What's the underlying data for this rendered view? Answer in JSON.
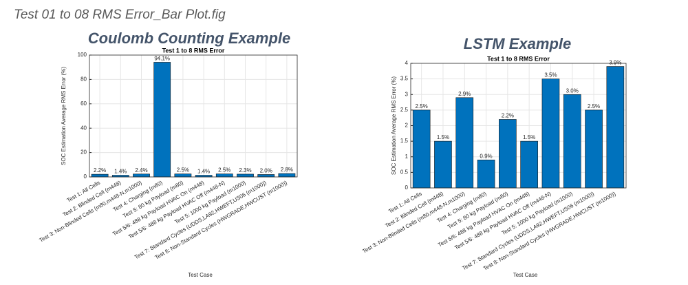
{
  "page_title": "Test 01 to 08 RMS Error_Bar Plot.fig",
  "chart_data": [
    {
      "type": "bar",
      "heading": "Coulomb Counting Example",
      "title": "Test 1 to 8 RMS Error",
      "x_label": "Test Case",
      "y_label": "SOC Estimation Average RMS Error (%)",
      "categories": [
        "Test 1: All Cells",
        "Test 2: Blinded Cell (m448)",
        "Test 3: Non-Blinded Cells (m80,m448-N,m1000)",
        "Test 4: Charging (m80)",
        "Test 5: 80 kg Payload (m80)",
        "Test 5/6: 488 kg Payload HVAC On (m448)",
        "Test 5/6: 488 kg Payload HVAC Off (m448-N)",
        "Test 5: 1000 kg Payload (m1000)",
        "Test 7: Standard Cycles (UDDS,LA92,HWEFT,US06 (m1000))",
        "Test 8: Non-Standard Cycles (HWGRADE,HWCUST (m1000))"
      ],
      "values": [
        2.2,
        1.4,
        2.4,
        94.1,
        2.5,
        1.4,
        2.5,
        2.3,
        2.0,
        2.8
      ],
      "value_labels": [
        "2.2%",
        "1.4%",
        "2.4%",
        "94.1%",
        "2.5%",
        "1.4%",
        "2.5%",
        "2.3%",
        "2.0%",
        "2.8%"
      ],
      "color": "#0072bd",
      "ylim": [
        0,
        100
      ],
      "yticks": [
        0,
        20,
        40,
        60,
        80,
        100
      ],
      "grid": true
    },
    {
      "type": "bar",
      "heading": "LSTM Example",
      "title": "Test 1 to 8 RMS Error",
      "x_label": "Test Case",
      "y_label": "SOC Estimation Average RMS Error (%)",
      "categories": [
        "Test 1: All Cells",
        "Test 2: Blinded Cell (m448)",
        "Test 3: Non-Blinded Cells (m80,m448-N,m1000)",
        "Test 4: Charging (m80)",
        "Test 5: 80 kg Payload (m80)",
        "Test 5/6: 488 kg Payload HVAC On (m448)",
        "Test 5/6: 488 kg Payload HVAC Off (m448-N)",
        "Test 5: 1000 kg Payload (m1000)",
        "Test 7: Standard Cycles (UDDS,LA92,HWEFT,US06 (m1000))",
        "Test 8: Non-Standard Cycles (HWGRADE,HWCUST (m1000))"
      ],
      "values": [
        2.5,
        1.5,
        2.9,
        0.9,
        2.2,
        1.5,
        3.5,
        3.0,
        2.5,
        3.9
      ],
      "value_labels": [
        "2.5%",
        "1.5%",
        "2.9%",
        "0.9%",
        "2.2%",
        "1.5%",
        "3.5%",
        "3.0%",
        "2.5%",
        "3.9%"
      ],
      "color": "#0072bd",
      "ylim": [
        0,
        4
      ],
      "yticks": [
        0,
        0.5,
        1,
        1.5,
        2,
        2.5,
        3,
        3.5,
        4
      ],
      "grid": true
    }
  ]
}
